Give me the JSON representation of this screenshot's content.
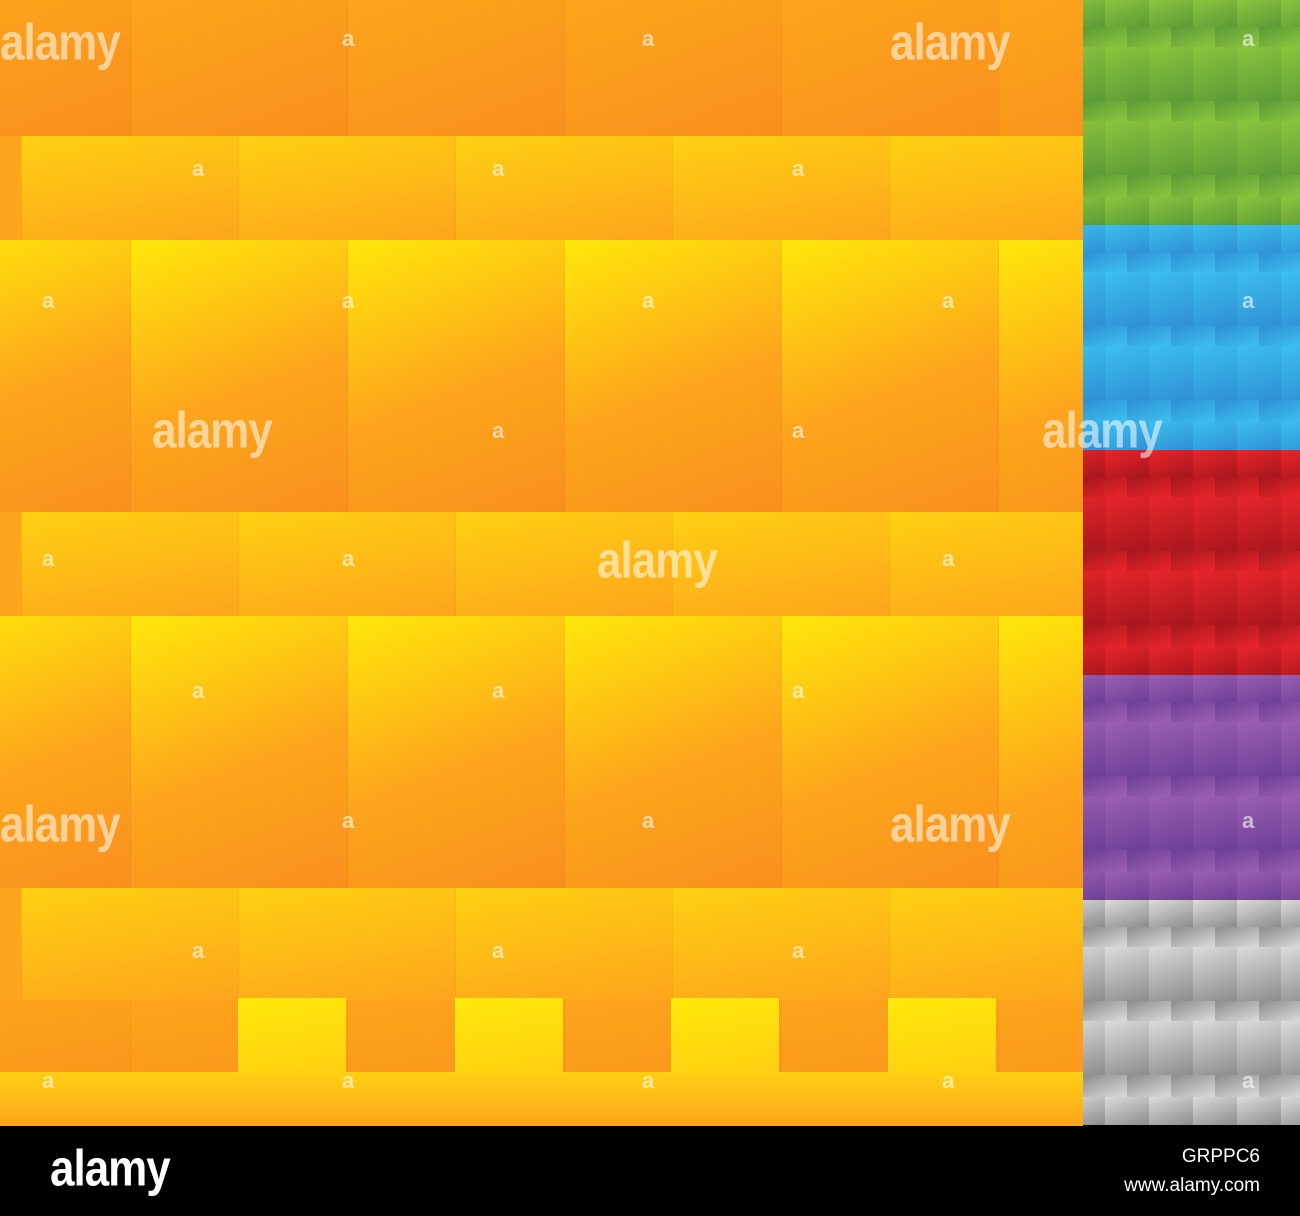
{
  "pattern": {
    "palette": {
      "orange_dark": "#f98f1d",
      "orange_mid": "#fda51c",
      "orange_light": "#ffd012",
      "yellow": "#ffe80a"
    }
  },
  "swatches": [
    {
      "name": "green",
      "dark": "#5a9a36",
      "light": "#8cc63e"
    },
    {
      "name": "blue",
      "dark": "#2f8fd3",
      "light": "#3cc0ef"
    },
    {
      "name": "red",
      "dark": "#a6161c",
      "light": "#e8262b"
    },
    {
      "name": "purple",
      "dark": "#6b3f94",
      "light": "#9c5fb5"
    },
    {
      "name": "gray",
      "dark": "#8c8c8c",
      "light": "#dcdcdc"
    }
  ],
  "watermark": {
    "big_text": "alamy",
    "small_text": "a"
  },
  "footer": {
    "logo_text": "alamy",
    "image_id": "GRPPC6",
    "url": "www.alamy.com"
  }
}
